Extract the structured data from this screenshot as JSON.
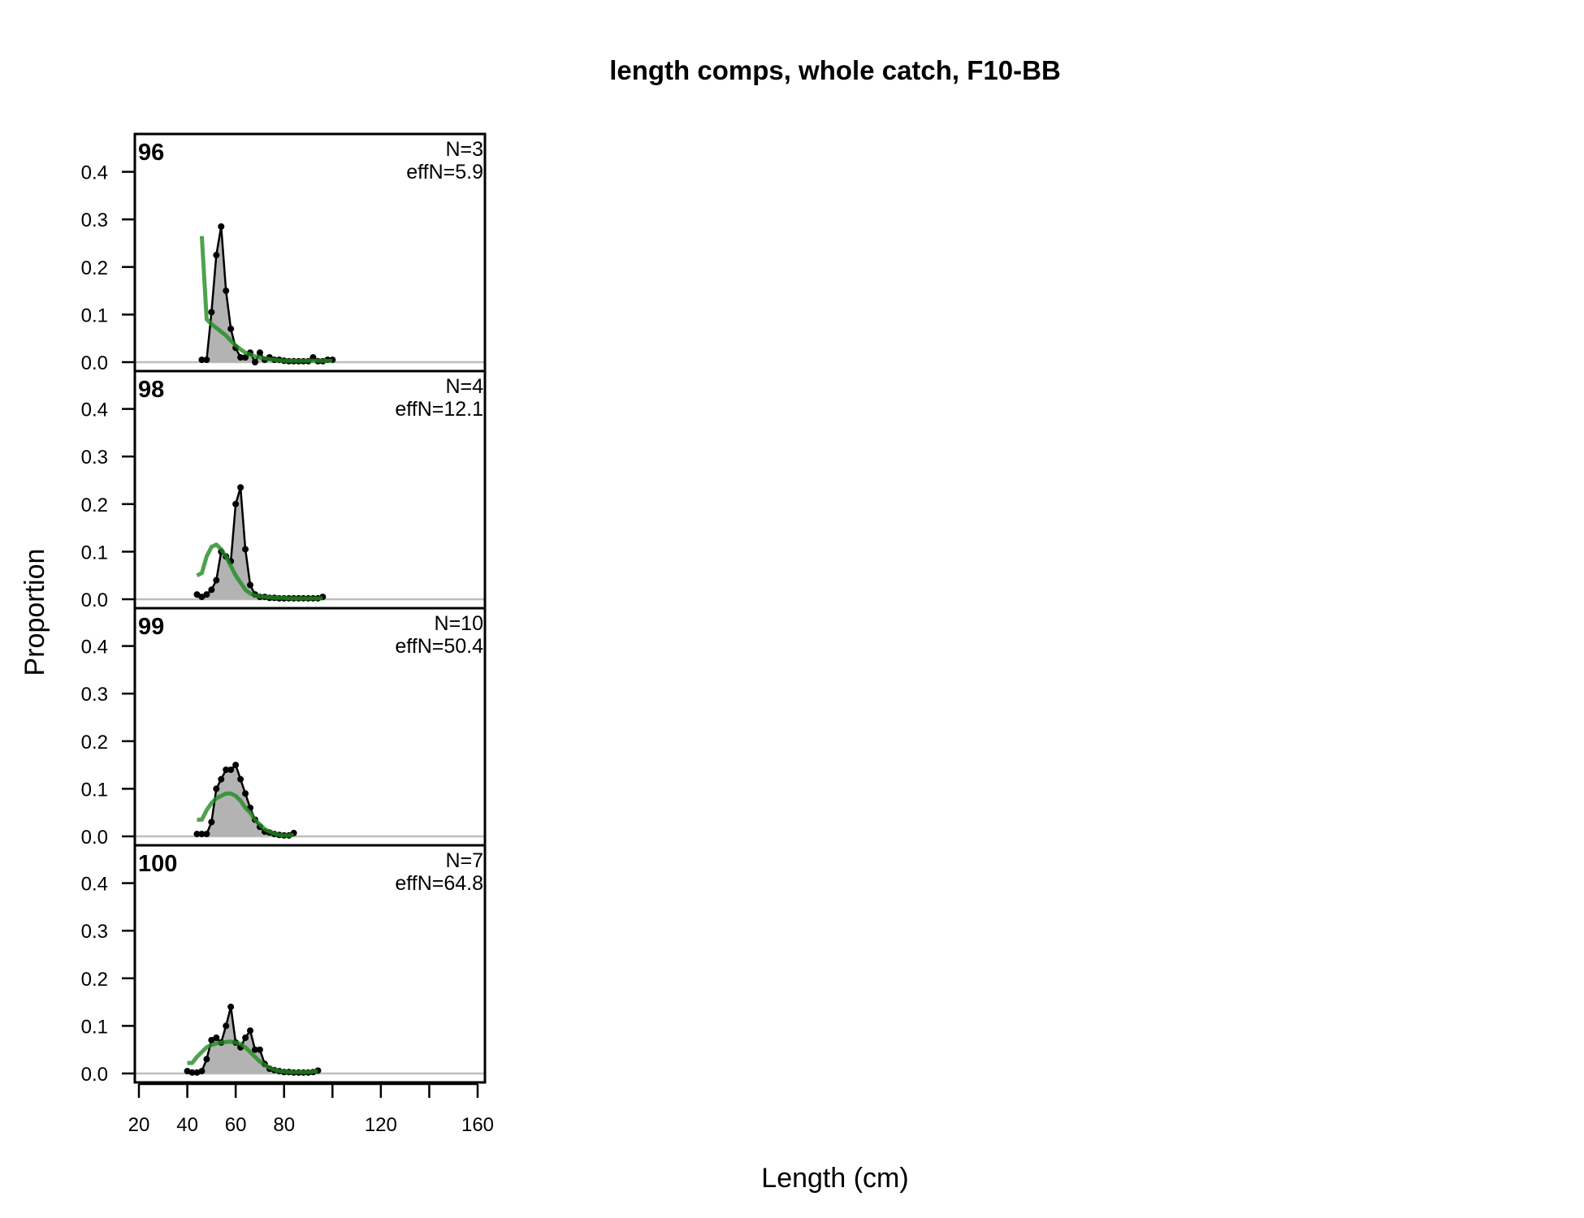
{
  "chart_data": {
    "type": "line",
    "title": "length comps, whole catch, F10-BB",
    "xlabel": "Length (cm)",
    "ylabel": "Proportion",
    "xlim": [
      20,
      160
    ],
    "ylim": [
      0,
      0.4
    ],
    "x_ticks": [
      20,
      40,
      60,
      80,
      100,
      120,
      140,
      160
    ],
    "x_tick_labels": [
      "20",
      "40",
      "60",
      "80",
      "",
      "120",
      "",
      "160"
    ],
    "y_ticks": [
      0,
      0.1,
      0.2,
      0.3,
      0.4
    ],
    "y_tick_labels": [
      "0.0",
      "0.1",
      "0.2",
      "0.3",
      "0.4"
    ],
    "colors": {
      "observed_fill": "#b3b3b3",
      "observed_line": "#000000",
      "expected_line": "#228B22",
      "zero_line": "#bebebe"
    },
    "panels": [
      {
        "label": "96",
        "n_text": "N=3",
        "effn_text": "effN=5.9",
        "x": [
          46,
          48,
          50,
          52,
          54,
          56,
          58,
          60,
          62,
          64,
          66,
          68,
          70,
          72,
          74,
          76,
          78,
          80,
          82,
          84,
          86,
          88,
          90,
          92,
          94,
          96,
          98,
          100
        ],
        "observed": [
          0.005,
          0.005,
          0.105,
          0.225,
          0.285,
          0.15,
          0.07,
          0.03,
          0.01,
          0.01,
          0.02,
          0.0,
          0.02,
          0.005,
          0.01,
          0.005,
          0.005,
          0.003,
          0.002,
          0.002,
          0.002,
          0.002,
          0.002,
          0.01,
          0.002,
          0.002,
          0.005,
          0.005
        ],
        "expected": [
          0.265,
          0.09,
          0.08,
          0.072,
          0.064,
          0.056,
          0.045,
          0.035,
          0.027,
          0.02,
          0.016,
          0.012,
          0.01,
          0.008,
          0.006,
          0.005,
          0.004,
          0.003,
          0.003,
          0.003,
          0.003,
          0.003,
          0.003,
          0.003,
          0.003,
          0.003,
          0.003,
          0.003
        ]
      },
      {
        "label": "98",
        "n_text": "N=4",
        "effn_text": "effN=12.1",
        "x": [
          44,
          46,
          48,
          50,
          52,
          54,
          56,
          58,
          60,
          62,
          64,
          66,
          68,
          70,
          72,
          74,
          76,
          78,
          80,
          82,
          84,
          86,
          88,
          90,
          92,
          94,
          96
        ],
        "observed": [
          0.01,
          0.005,
          0.01,
          0.02,
          0.04,
          0.1,
          0.09,
          0.08,
          0.2,
          0.235,
          0.105,
          0.03,
          0.01,
          0.005,
          0.005,
          0.003,
          0.003,
          0.002,
          0.002,
          0.002,
          0.002,
          0.002,
          0.002,
          0.002,
          0.002,
          0.002,
          0.005
        ],
        "expected": [
          0.05,
          0.055,
          0.09,
          0.11,
          0.115,
          0.105,
          0.09,
          0.07,
          0.05,
          0.035,
          0.02,
          0.012,
          0.008,
          0.006,
          0.005,
          0.004,
          0.003,
          0.003,
          0.003,
          0.002,
          0.002,
          0.002,
          0.002,
          0.002,
          0.002,
          0.002,
          0.002
        ]
      },
      {
        "label": "99",
        "n_text": "N=10",
        "effn_text": "effN=50.4",
        "x": [
          44,
          46,
          48,
          50,
          52,
          54,
          56,
          58,
          60,
          62,
          64,
          66,
          68,
          70,
          72,
          74,
          76,
          78,
          80,
          82,
          84
        ],
        "observed": [
          0.005,
          0.005,
          0.005,
          0.03,
          0.1,
          0.12,
          0.14,
          0.14,
          0.15,
          0.12,
          0.09,
          0.06,
          0.035,
          0.02,
          0.01,
          0.008,
          0.005,
          0.003,
          0.002,
          0.002,
          0.007
        ],
        "expected": [
          0.035,
          0.035,
          0.055,
          0.07,
          0.08,
          0.085,
          0.09,
          0.09,
          0.085,
          0.075,
          0.06,
          0.05,
          0.035,
          0.025,
          0.015,
          0.01,
          0.006,
          0.003,
          0.002,
          0.002,
          0.003
        ]
      },
      {
        "label": "100",
        "n_text": "N=7",
        "effn_text": "effN=64.8",
        "x": [
          40,
          42,
          44,
          46,
          48,
          50,
          52,
          54,
          56,
          58,
          60,
          62,
          64,
          66,
          68,
          70,
          72,
          74,
          76,
          78,
          80,
          82,
          84,
          86,
          88,
          90,
          92,
          94
        ],
        "observed": [
          0.005,
          0.002,
          0.002,
          0.005,
          0.03,
          0.07,
          0.075,
          0.065,
          0.1,
          0.14,
          0.065,
          0.055,
          0.075,
          0.09,
          0.05,
          0.05,
          0.02,
          0.01,
          0.007,
          0.005,
          0.003,
          0.003,
          0.002,
          0.002,
          0.002,
          0.002,
          0.003,
          0.006
        ],
        "expected": [
          0.022,
          0.022,
          0.035,
          0.045,
          0.055,
          0.06,
          0.063,
          0.065,
          0.066,
          0.067,
          0.065,
          0.062,
          0.055,
          0.045,
          0.035,
          0.025,
          0.018,
          0.012,
          0.008,
          0.005,
          0.004,
          0.003,
          0.003,
          0.003,
          0.003,
          0.003,
          0.004,
          0.005
        ]
      }
    ]
  }
}
